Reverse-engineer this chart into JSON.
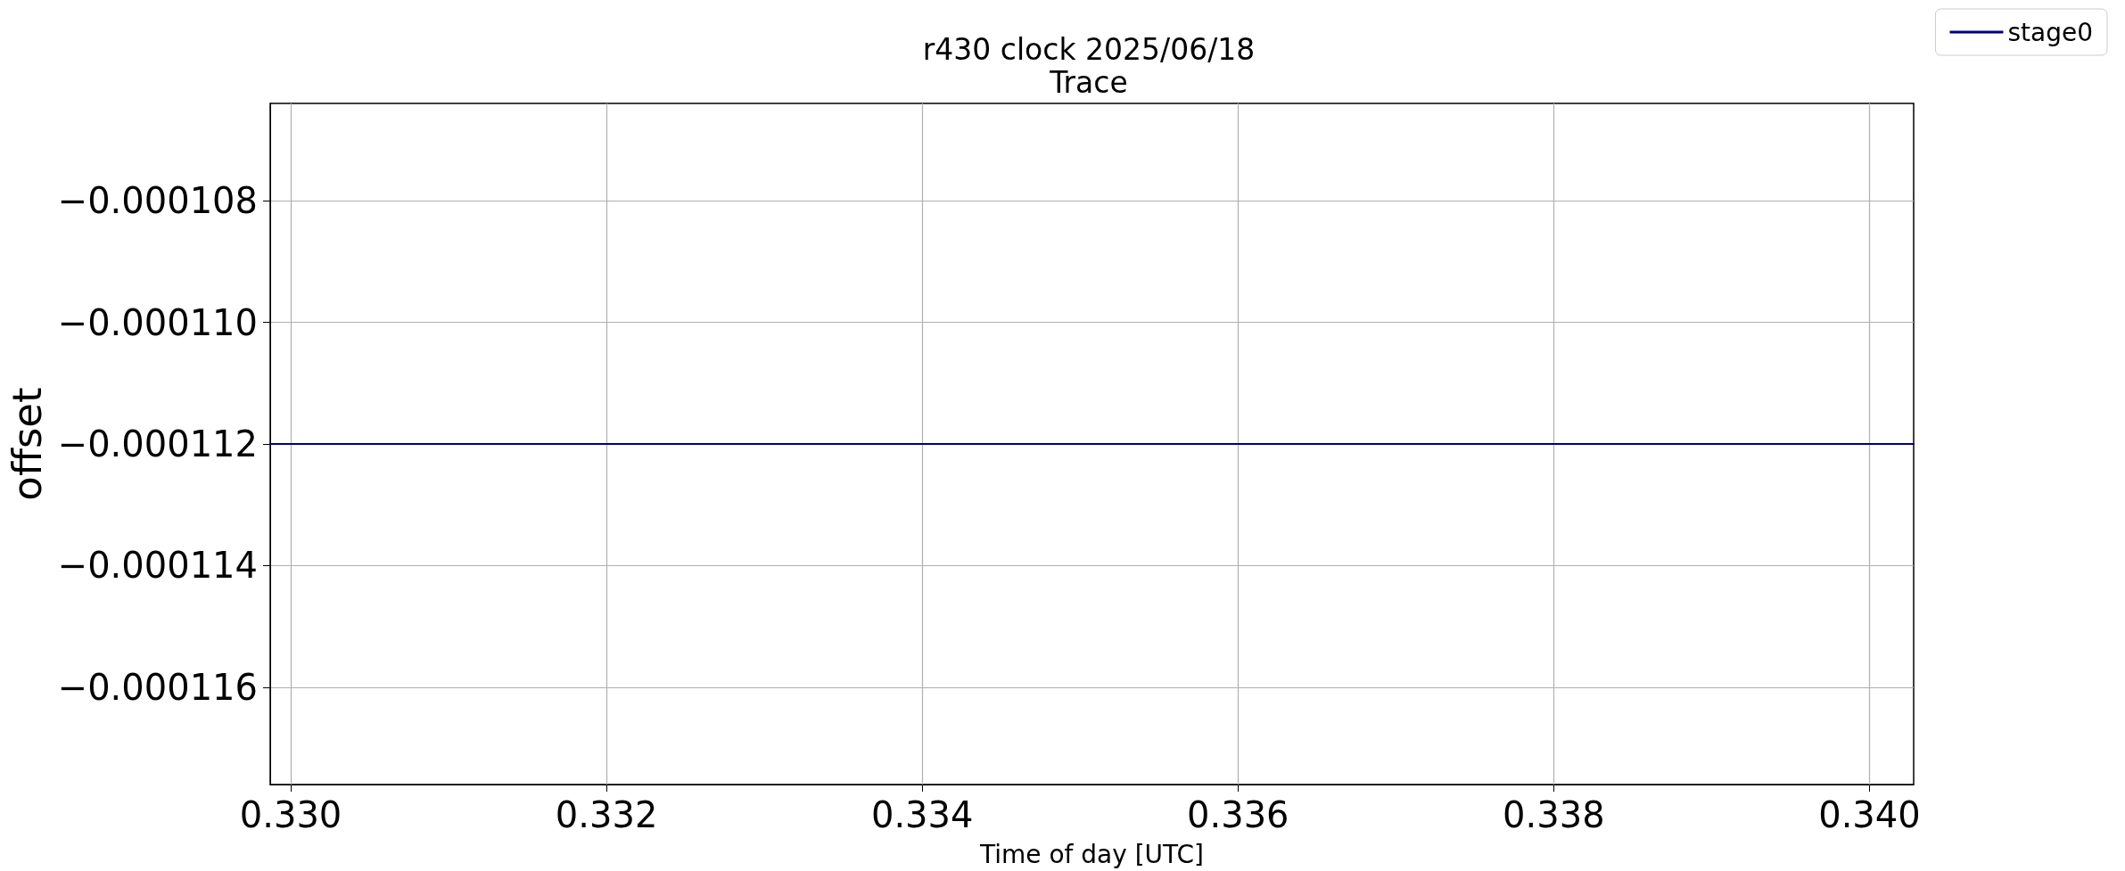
{
  "chart_data": {
    "type": "line",
    "title": "r430 clock 2025/06/18",
    "subtitle": "Trace",
    "xlabel": "Time of day [UTC]",
    "ylabel": "offset",
    "series": [
      {
        "name": "stage0",
        "color": "#000080",
        "x": [
          0.32987,
          0.34028
        ],
        "values": [
          -0.000112,
          -0.000112
        ]
      }
    ],
    "xlim": [
      0.32987,
      0.34028
    ],
    "xticks": [
      {
        "value": 0.33,
        "label": "0.330"
      },
      {
        "value": 0.332,
        "label": "0.332"
      },
      {
        "value": 0.334,
        "label": "0.334"
      },
      {
        "value": 0.336,
        "label": "0.336"
      },
      {
        "value": 0.338,
        "label": "0.338"
      },
      {
        "value": 0.34,
        "label": "0.340"
      }
    ],
    "ylim": [
      -0.0001176,
      -0.0001064
    ],
    "yticks": [
      {
        "value": -0.000108,
        "label": "−0.000108"
      },
      {
        "value": -0.00011,
        "label": "−0.000110"
      },
      {
        "value": -0.000112,
        "label": "−0.000112"
      },
      {
        "value": -0.000114,
        "label": "−0.000114"
      },
      {
        "value": -0.000116,
        "label": "−0.000116"
      }
    ],
    "grid": true,
    "legend": "top right",
    "marker": "none",
    "line_style": "solid"
  }
}
